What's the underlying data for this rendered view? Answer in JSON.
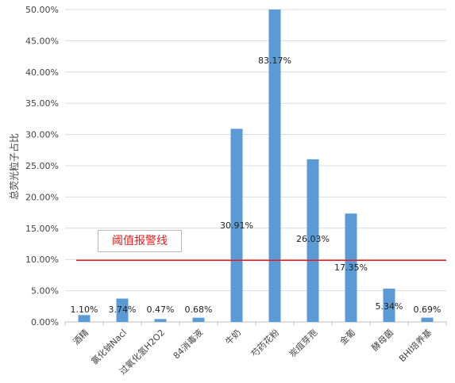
{
  "chart_data": {
    "type": "bar",
    "ylabel": "总荧光粒子占比",
    "ylim": [
      0,
      50
    ],
    "yticks": [
      "0.00%",
      "5.00%",
      "10.00%",
      "15.00%",
      "20.00%",
      "25.00%",
      "30.00%",
      "35.00%",
      "40.00%",
      "45.00%",
      "50.00%"
    ],
    "categories": [
      "酒精",
      "氯化钠Nacl",
      "过氧化氢H2O2",
      "84消毒液",
      "牛奶",
      "芍药花粉",
      "炭疽芽孢",
      "金葡",
      "酵母菌",
      "BHI培养基"
    ],
    "values": [
      1.1,
      3.74,
      0.47,
      0.68,
      30.91,
      83.17,
      26.03,
      17.35,
      5.34,
      0.69
    ],
    "data_labels": [
      "1.10%",
      "3.74%",
      "0.47%",
      "0.68%",
      "30.91%",
      "83.17%",
      "26.03%",
      "17.35%",
      "5.34%",
      "0.69%"
    ],
    "bar_color": "#5b9bd5",
    "grid": true,
    "threshold": {
      "value": 10,
      "label": "阈值报警线",
      "color": "#e02020"
    }
  }
}
